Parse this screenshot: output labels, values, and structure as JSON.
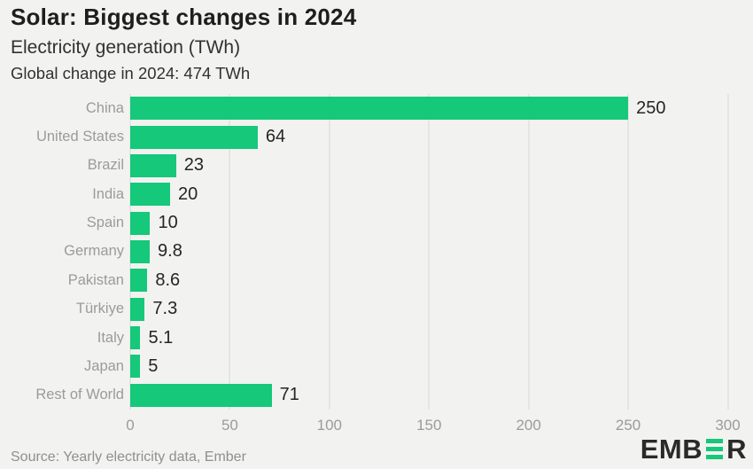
{
  "header": {
    "title": "Solar: Biggest changes in 2024",
    "subtitle": "Electricity generation (TWh)",
    "note": "Global change in 2024: 474 TWh"
  },
  "chart_data": {
    "type": "bar",
    "orientation": "horizontal",
    "title": "Solar: Biggest changes in 2024",
    "subtitle": "Electricity generation (TWh)",
    "annotation": "Global change in 2024: 474 TWh",
    "categories": [
      "China",
      "United States",
      "Brazil",
      "India",
      "Spain",
      "Germany",
      "Pakistan",
      "Türkiye",
      "Italy",
      "Japan",
      "Rest of World"
    ],
    "values": [
      250,
      64,
      23,
      20,
      10,
      9.8,
      8.6,
      7.3,
      5.1,
      5,
      71
    ],
    "value_labels": [
      "250",
      "64",
      "23",
      "20",
      "10",
      "9.8",
      "8.6",
      "7.3",
      "5.1",
      "5",
      "71"
    ],
    "xlabel": "",
    "ylabel": "",
    "x_ticks": [
      0,
      50,
      100,
      150,
      200,
      250,
      300
    ],
    "xlim": [
      0,
      302
    ],
    "grid": true,
    "legend": false,
    "bar_color": "#15c87a"
  },
  "colors": {
    "background": "#f2f2f0",
    "bar": "#15c87a",
    "gridline": "#d8d8d6",
    "title_text": "#1e1e1c",
    "category_label": "#9b9b98",
    "value_label": "#252523",
    "tick_label": "#9b9b98",
    "source_text": "#8f8f8c",
    "logo_dark": "#2a2a28",
    "logo_green": "#15c87a"
  },
  "footer": {
    "source": "Source: Yearly electricity data, Ember",
    "logo_left": "EMB",
    "logo_right": "R"
  }
}
